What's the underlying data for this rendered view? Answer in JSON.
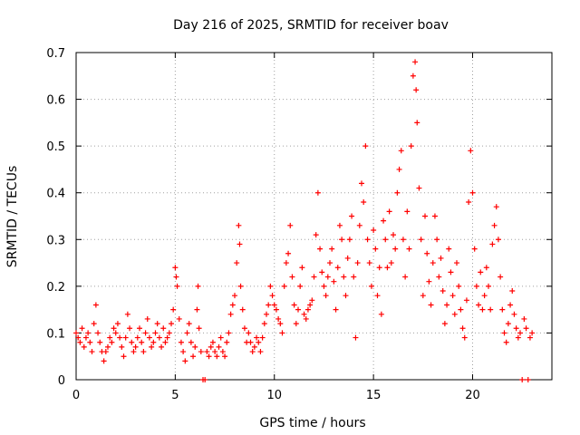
{
  "chart_data": {
    "type": "scatter",
    "title": "Day 216 of 2025, SRMTID for receiver boav",
    "xlabel": "GPS time / hours",
    "ylabel": "SRMTID / TECUs",
    "xlim": [
      0,
      24
    ],
    "ylim": [
      0,
      0.7
    ],
    "grid": true,
    "marker": "+",
    "marker_color": "#ff0000",
    "x_ticks": [
      0,
      5,
      10,
      15,
      20
    ],
    "x_tick_labels": [
      "0",
      "5",
      "10",
      "15",
      "20"
    ],
    "y_ticks": [
      0,
      0.1,
      0.2,
      0.3,
      0.4,
      0.5,
      0.6,
      0.7
    ],
    "y_tick_labels": [
      "0",
      "0.1",
      "0.2",
      "0.3",
      "0.4",
      "0.5",
      "0.6",
      "0.7"
    ],
    "series": [
      {
        "name": "SRMTID",
        "points": [
          [
            0.0,
            0.1
          ],
          [
            0.1,
            0.09
          ],
          [
            0.2,
            0.08
          ],
          [
            0.3,
            0.11
          ],
          [
            0.4,
            0.07
          ],
          [
            0.5,
            0.09
          ],
          [
            0.6,
            0.1
          ],
          [
            0.7,
            0.08
          ],
          [
            0.8,
            0.06
          ],
          [
            0.9,
            0.12
          ],
          [
            1.0,
            0.16
          ],
          [
            1.1,
            0.1
          ],
          [
            1.2,
            0.08
          ],
          [
            1.3,
            0.06
          ],
          [
            1.4,
            0.04
          ],
          [
            1.5,
            0.06
          ],
          [
            1.6,
            0.07
          ],
          [
            1.7,
            0.09
          ],
          [
            1.8,
            0.08
          ],
          [
            1.9,
            0.11
          ],
          [
            2.0,
            0.1
          ],
          [
            2.1,
            0.12
          ],
          [
            2.2,
            0.09
          ],
          [
            2.3,
            0.07
          ],
          [
            2.4,
            0.05
          ],
          [
            2.5,
            0.09
          ],
          [
            2.6,
            0.14
          ],
          [
            2.7,
            0.11
          ],
          [
            2.8,
            0.08
          ],
          [
            2.9,
            0.06
          ],
          [
            3.0,
            0.07
          ],
          [
            3.1,
            0.09
          ],
          [
            3.2,
            0.11
          ],
          [
            3.3,
            0.08
          ],
          [
            3.4,
            0.06
          ],
          [
            3.5,
            0.1
          ],
          [
            3.6,
            0.13
          ],
          [
            3.7,
            0.09
          ],
          [
            3.8,
            0.07
          ],
          [
            3.9,
            0.08
          ],
          [
            4.0,
            0.1
          ],
          [
            4.1,
            0.12
          ],
          [
            4.2,
            0.09
          ],
          [
            4.3,
            0.07
          ],
          [
            4.4,
            0.11
          ],
          [
            4.5,
            0.08
          ],
          [
            4.6,
            0.09
          ],
          [
            4.7,
            0.1
          ],
          [
            4.8,
            0.12
          ],
          [
            4.9,
            0.15
          ],
          [
            5.0,
            0.24
          ],
          [
            5.05,
            0.22
          ],
          [
            5.1,
            0.2
          ],
          [
            5.2,
            0.13
          ],
          [
            5.3,
            0.08
          ],
          [
            5.4,
            0.06
          ],
          [
            5.5,
            0.04
          ],
          [
            5.6,
            0.1
          ],
          [
            5.7,
            0.12
          ],
          [
            5.8,
            0.08
          ],
          [
            5.9,
            0.05
          ],
          [
            6.0,
            0.07
          ],
          [
            6.1,
            0.15
          ],
          [
            6.15,
            0.2
          ],
          [
            6.2,
            0.11
          ],
          [
            6.3,
            0.06
          ],
          [
            6.4,
            0.0
          ],
          [
            6.5,
            0.0
          ],
          [
            6.6,
            0.06
          ],
          [
            6.7,
            0.05
          ],
          [
            6.8,
            0.07
          ],
          [
            6.9,
            0.08
          ],
          [
            7.0,
            0.06
          ],
          [
            7.1,
            0.05
          ],
          [
            7.2,
            0.07
          ],
          [
            7.3,
            0.09
          ],
          [
            7.4,
            0.06
          ],
          [
            7.5,
            0.05
          ],
          [
            7.6,
            0.08
          ],
          [
            7.7,
            0.1
          ],
          [
            7.8,
            0.14
          ],
          [
            7.9,
            0.16
          ],
          [
            8.0,
            0.18
          ],
          [
            8.1,
            0.25
          ],
          [
            8.2,
            0.33
          ],
          [
            8.25,
            0.29
          ],
          [
            8.3,
            0.2
          ],
          [
            8.4,
            0.15
          ],
          [
            8.5,
            0.11
          ],
          [
            8.6,
            0.08
          ],
          [
            8.7,
            0.1
          ],
          [
            8.8,
            0.08
          ],
          [
            8.9,
            0.06
          ],
          [
            9.0,
            0.07
          ],
          [
            9.1,
            0.09
          ],
          [
            9.2,
            0.08
          ],
          [
            9.3,
            0.06
          ],
          [
            9.4,
            0.09
          ],
          [
            9.5,
            0.12
          ],
          [
            9.6,
            0.14
          ],
          [
            9.7,
            0.16
          ],
          [
            9.8,
            0.2
          ],
          [
            9.9,
            0.18
          ],
          [
            10.0,
            0.16
          ],
          [
            10.1,
            0.15
          ],
          [
            10.2,
            0.13
          ],
          [
            10.3,
            0.12
          ],
          [
            10.4,
            0.1
          ],
          [
            10.5,
            0.2
          ],
          [
            10.6,
            0.25
          ],
          [
            10.7,
            0.27
          ],
          [
            10.8,
            0.33
          ],
          [
            10.9,
            0.22
          ],
          [
            11.0,
            0.16
          ],
          [
            11.1,
            0.12
          ],
          [
            11.2,
            0.15
          ],
          [
            11.3,
            0.2
          ],
          [
            11.4,
            0.24
          ],
          [
            11.5,
            0.14
          ],
          [
            11.6,
            0.13
          ],
          [
            11.7,
            0.15
          ],
          [
            11.8,
            0.16
          ],
          [
            11.9,
            0.17
          ],
          [
            12.0,
            0.22
          ],
          [
            12.1,
            0.31
          ],
          [
            12.2,
            0.4
          ],
          [
            12.3,
            0.28
          ],
          [
            12.4,
            0.23
          ],
          [
            12.5,
            0.2
          ],
          [
            12.6,
            0.18
          ],
          [
            12.7,
            0.22
          ],
          [
            12.8,
            0.25
          ],
          [
            12.9,
            0.28
          ],
          [
            13.0,
            0.21
          ],
          [
            13.1,
            0.15
          ],
          [
            13.2,
            0.24
          ],
          [
            13.3,
            0.33
          ],
          [
            13.4,
            0.3
          ],
          [
            13.5,
            0.22
          ],
          [
            13.6,
            0.18
          ],
          [
            13.7,
            0.26
          ],
          [
            13.8,
            0.3
          ],
          [
            13.9,
            0.35
          ],
          [
            14.0,
            0.22
          ],
          [
            14.1,
            0.09
          ],
          [
            14.2,
            0.25
          ],
          [
            14.3,
            0.33
          ],
          [
            14.4,
            0.42
          ],
          [
            14.5,
            0.38
          ],
          [
            14.6,
            0.5
          ],
          [
            14.7,
            0.3
          ],
          [
            14.8,
            0.25
          ],
          [
            14.9,
            0.2
          ],
          [
            15.0,
            0.32
          ],
          [
            15.1,
            0.28
          ],
          [
            15.2,
            0.18
          ],
          [
            15.3,
            0.24
          ],
          [
            15.4,
            0.14
          ],
          [
            15.5,
            0.34
          ],
          [
            15.6,
            0.3
          ],
          [
            15.7,
            0.24
          ],
          [
            15.8,
            0.36
          ],
          [
            15.9,
            0.25
          ],
          [
            16.0,
            0.31
          ],
          [
            16.1,
            0.28
          ],
          [
            16.2,
            0.4
          ],
          [
            16.3,
            0.45
          ],
          [
            16.4,
            0.49
          ],
          [
            16.5,
            0.3
          ],
          [
            16.6,
            0.22
          ],
          [
            16.7,
            0.36
          ],
          [
            16.8,
            0.28
          ],
          [
            16.9,
            0.5
          ],
          [
            17.0,
            0.65
          ],
          [
            17.1,
            0.68
          ],
          [
            17.15,
            0.62
          ],
          [
            17.2,
            0.55
          ],
          [
            17.3,
            0.41
          ],
          [
            17.4,
            0.3
          ],
          [
            17.5,
            0.18
          ],
          [
            17.6,
            0.35
          ],
          [
            17.7,
            0.27
          ],
          [
            17.8,
            0.21
          ],
          [
            17.9,
            0.16
          ],
          [
            18.0,
            0.25
          ],
          [
            18.1,
            0.35
          ],
          [
            18.2,
            0.3
          ],
          [
            18.3,
            0.22
          ],
          [
            18.4,
            0.26
          ],
          [
            18.5,
            0.19
          ],
          [
            18.6,
            0.12
          ],
          [
            18.7,
            0.16
          ],
          [
            18.8,
            0.28
          ],
          [
            18.9,
            0.23
          ],
          [
            19.0,
            0.18
          ],
          [
            19.1,
            0.14
          ],
          [
            19.2,
            0.25
          ],
          [
            19.3,
            0.2
          ],
          [
            19.4,
            0.15
          ],
          [
            19.5,
            0.11
          ],
          [
            19.6,
            0.09
          ],
          [
            19.7,
            0.17
          ],
          [
            19.8,
            0.38
          ],
          [
            19.9,
            0.49
          ],
          [
            20.0,
            0.4
          ],
          [
            20.1,
            0.28
          ],
          [
            20.2,
            0.2
          ],
          [
            20.3,
            0.16
          ],
          [
            20.4,
            0.23
          ],
          [
            20.5,
            0.15
          ],
          [
            20.6,
            0.18
          ],
          [
            20.7,
            0.24
          ],
          [
            20.8,
            0.2
          ],
          [
            20.9,
            0.15
          ],
          [
            21.0,
            0.29
          ],
          [
            21.1,
            0.33
          ],
          [
            21.2,
            0.37
          ],
          [
            21.3,
            0.3
          ],
          [
            21.4,
            0.22
          ],
          [
            21.5,
            0.15
          ],
          [
            21.6,
            0.1
          ],
          [
            21.7,
            0.08
          ],
          [
            21.8,
            0.12
          ],
          [
            21.9,
            0.16
          ],
          [
            22.0,
            0.19
          ],
          [
            22.1,
            0.14
          ],
          [
            22.2,
            0.11
          ],
          [
            22.3,
            0.09
          ],
          [
            22.4,
            0.1
          ],
          [
            22.5,
            0.0
          ],
          [
            22.6,
            0.13
          ],
          [
            22.7,
            0.11
          ],
          [
            22.8,
            0.0
          ],
          [
            22.9,
            0.09
          ],
          [
            23.0,
            0.1
          ]
        ]
      }
    ]
  }
}
